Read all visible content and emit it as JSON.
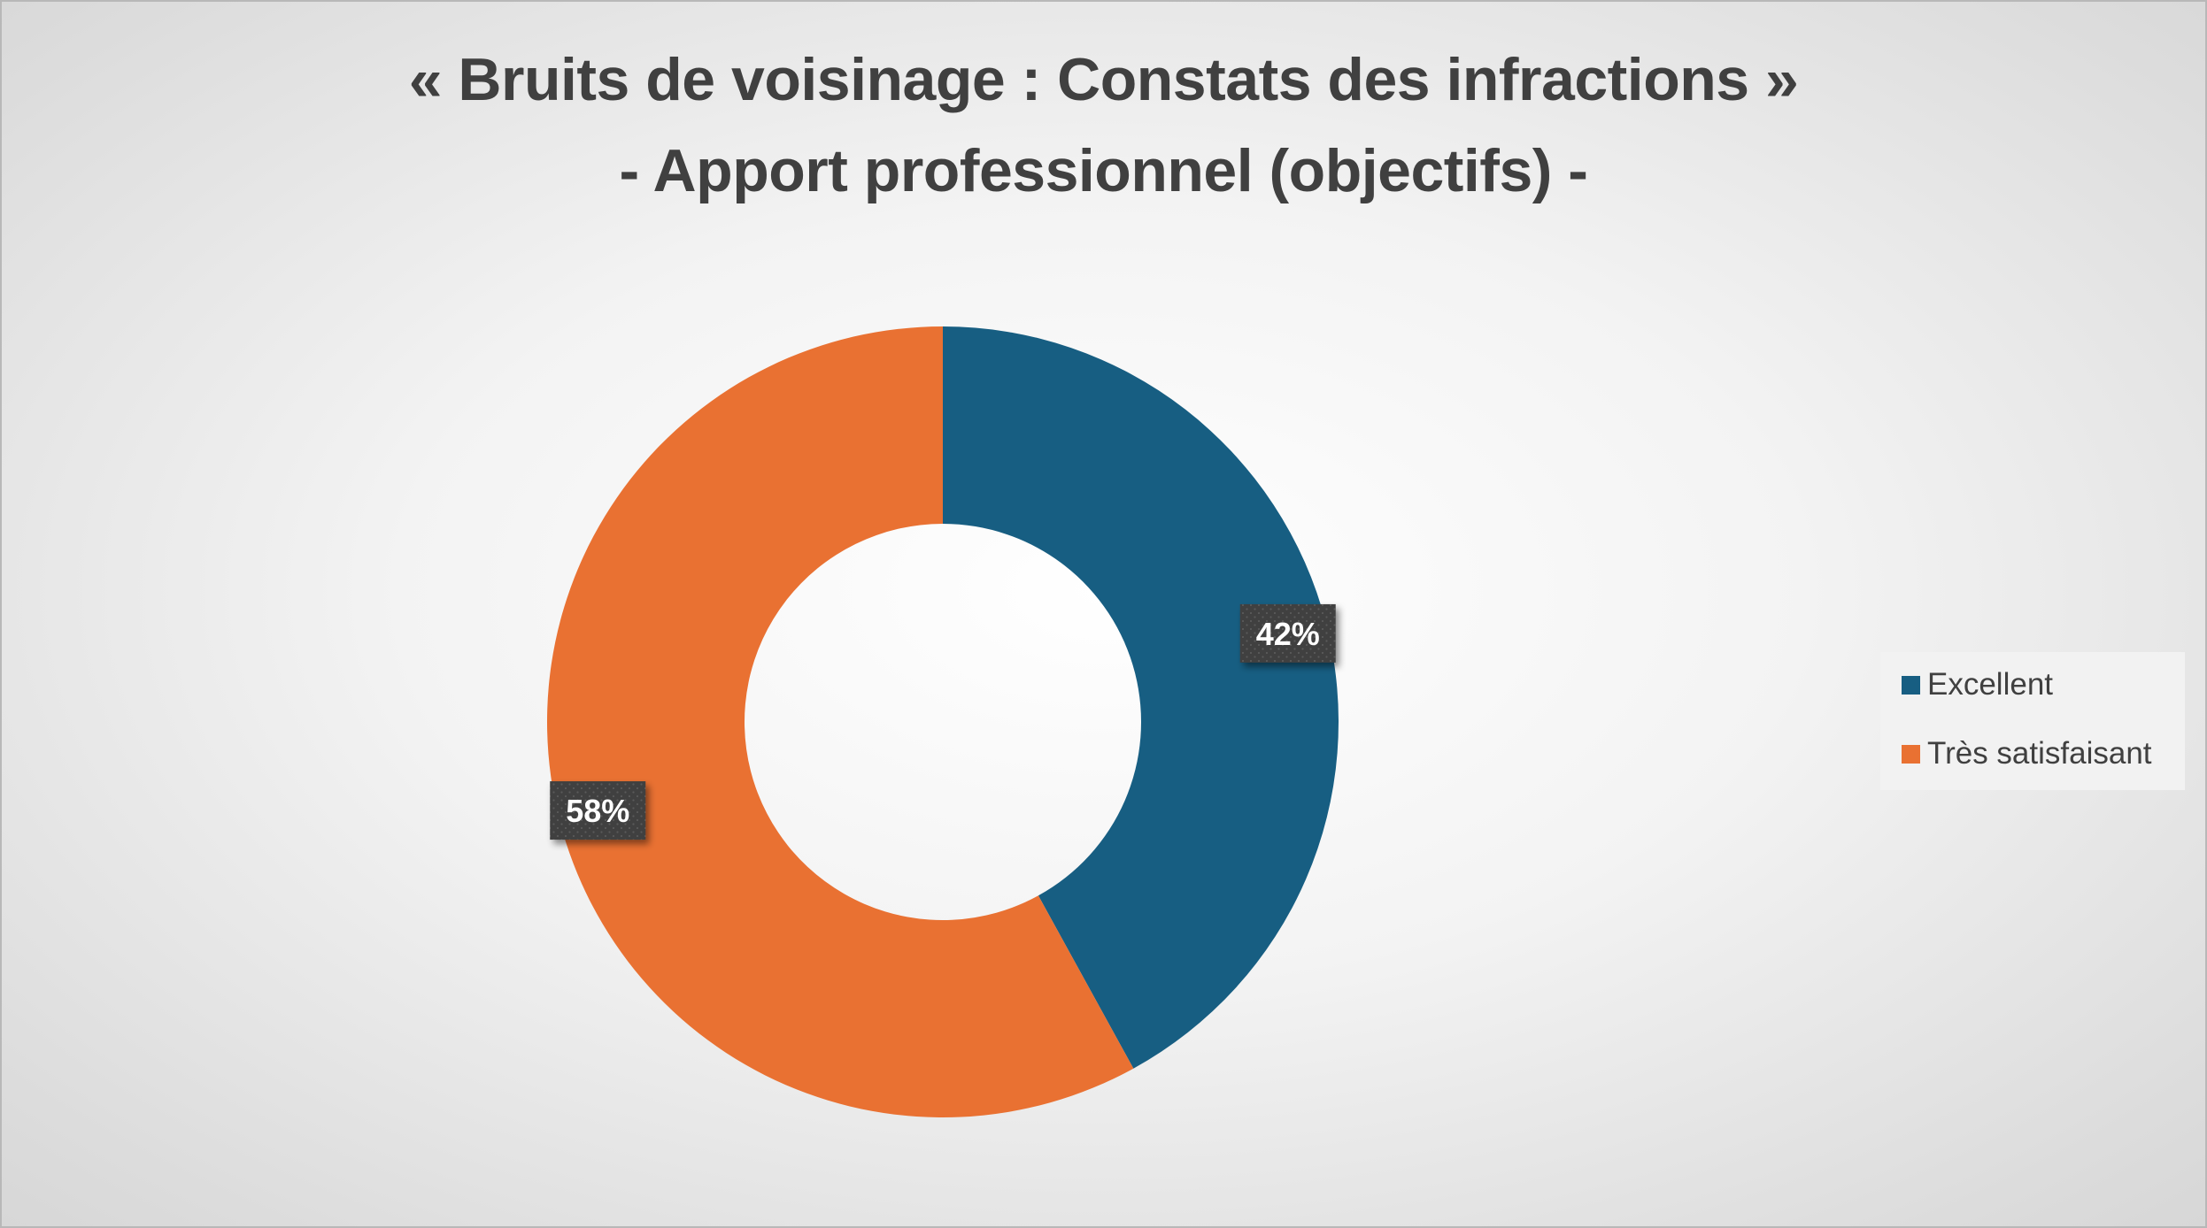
{
  "chart_data": {
    "type": "pie",
    "subtype": "doughnut",
    "title": "« Bruits de voisinage : Constats des infractions »",
    "subtitle": "- Apport professionnel (objectifs) -",
    "categories": [
      "Excellent",
      "Très satisfaisant"
    ],
    "values": [
      42,
      58
    ],
    "data_labels": [
      "42%",
      "58%"
    ],
    "colors": [
      "#175E82",
      "#E97132"
    ],
    "start_angle_deg": 0,
    "direction": "clockwise",
    "legend": "right",
    "grid": false
  }
}
